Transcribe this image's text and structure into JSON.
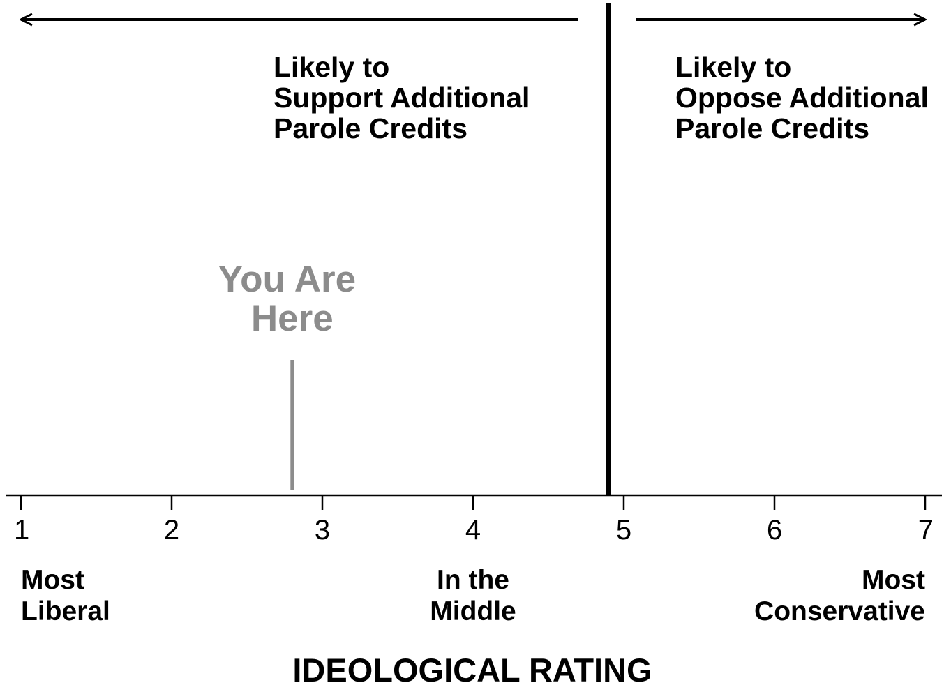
{
  "chart_data": {
    "type": "scale",
    "xlabel": "IDEOLOGICAL RATING",
    "xlim": [
      1,
      7
    ],
    "ticks": [
      1,
      2,
      3,
      4,
      5,
      6,
      7
    ],
    "tick_labels": [
      "1",
      "2",
      "3",
      "4",
      "5",
      "6",
      "7"
    ],
    "anchors": [
      {
        "value": 1,
        "lines": [
          "Most",
          "Liberal"
        ],
        "align": "left"
      },
      {
        "value": 4,
        "lines": [
          "In the",
          "Middle"
        ],
        "align": "center"
      },
      {
        "value": 7,
        "lines": [
          "Most",
          "Conservative"
        ],
        "align": "right"
      }
    ],
    "threshold": {
      "value": 4.9,
      "color": "#000000"
    },
    "regions": [
      {
        "side": "left",
        "lines": [
          "Likely to",
          "Support Additional",
          "Parole Credits"
        ]
      },
      {
        "side": "right",
        "lines": [
          "Likely to",
          "Oppose Additional",
          "Parole Credits"
        ]
      }
    ],
    "marker": {
      "value": 2.8,
      "lines": [
        "You Are",
        "Here"
      ],
      "color": "#8c8c8c"
    }
  }
}
